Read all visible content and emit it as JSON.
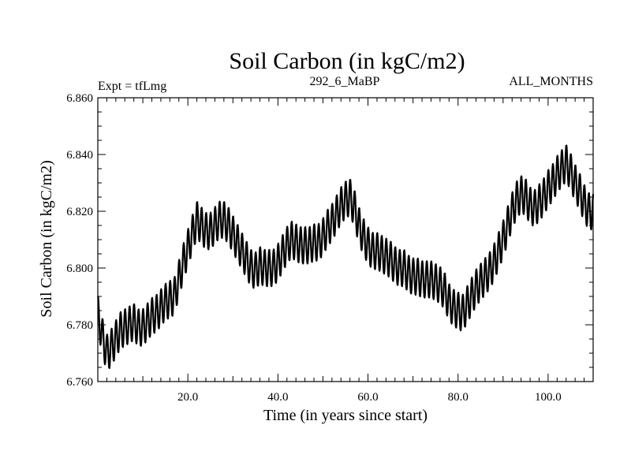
{
  "chart_data": {
    "type": "line",
    "title": "Soil Carbon (in kgC/m2)",
    "subtitle_left": "Expt = tfLmg",
    "subtitle_center": "292_6_MaBP",
    "subtitle_right": "ALL_MONTHS",
    "xlabel": "Time (in years since start)",
    "ylabel": "Soil Carbon (in kgC/m2)",
    "xlim": [
      0,
      110
    ],
    "ylim": [
      6.76,
      6.86
    ],
    "xticks": [
      20,
      40,
      60,
      80,
      100
    ],
    "xtick_labels": [
      "20.0",
      "40.0",
      "60.0",
      "80.0",
      "100.0"
    ],
    "yticks": [
      6.76,
      6.78,
      6.8,
      6.82,
      6.84,
      6.86
    ],
    "ytick_labels": [
      "6.760",
      "6.780",
      "6.800",
      "6.820",
      "6.840",
      "6.860"
    ],
    "series": [
      {
        "name": "Soil Carbon",
        "color": "#000000",
        "description": "monthly values with strong annual cycle",
        "x": [
          0,
          1,
          2,
          3,
          4,
          5,
          6,
          7,
          8,
          9,
          10,
          11,
          12,
          13,
          14,
          15,
          16,
          17,
          18,
          19,
          20,
          21,
          22,
          23,
          24,
          25,
          26,
          27,
          28,
          29,
          30,
          31,
          32,
          33,
          34,
          35,
          36,
          37,
          38,
          39,
          40,
          41,
          42,
          43,
          44,
          45,
          46,
          47,
          48,
          49,
          50,
          51,
          52,
          53,
          54,
          55,
          56,
          57,
          58,
          59,
          60,
          61,
          62,
          63,
          64,
          65,
          66,
          67,
          68,
          69,
          70,
          71,
          72,
          73,
          74,
          75,
          76,
          77,
          78,
          79,
          80,
          81,
          82,
          83,
          84,
          85,
          86,
          87,
          88,
          89,
          90,
          91,
          92,
          93,
          94,
          95,
          96,
          97,
          98,
          99,
          100,
          101,
          102,
          103,
          104,
          105,
          106,
          107,
          108,
          109,
          110
        ],
        "y": [
          6.784,
          6.776,
          6.77,
          6.772,
          6.775,
          6.778,
          6.779,
          6.78,
          6.781,
          6.779,
          6.779,
          6.781,
          6.783,
          6.784,
          6.786,
          6.788,
          6.789,
          6.79,
          6.796,
          6.802,
          6.807,
          6.812,
          6.817,
          6.815,
          6.813,
          6.813,
          6.815,
          6.817,
          6.817,
          6.815,
          6.812,
          6.809,
          6.806,
          6.803,
          6.8,
          6.799,
          6.801,
          6.8,
          6.8,
          6.8,
          6.802,
          6.805,
          6.808,
          6.81,
          6.809,
          6.808,
          6.808,
          6.808,
          6.809,
          6.809,
          6.811,
          6.814,
          6.816,
          6.819,
          6.822,
          6.824,
          6.825,
          6.821,
          6.815,
          6.811,
          6.808,
          6.806,
          6.806,
          6.805,
          6.804,
          6.803,
          6.801,
          6.8,
          6.8,
          6.798,
          6.797,
          6.797,
          6.796,
          6.796,
          6.796,
          6.795,
          6.794,
          6.792,
          6.788,
          6.786,
          6.785,
          6.784,
          6.787,
          6.79,
          6.793,
          6.795,
          6.797,
          6.799,
          6.802,
          6.806,
          6.81,
          6.815,
          6.82,
          6.824,
          6.826,
          6.825,
          6.822,
          6.821,
          6.823,
          6.825,
          6.828,
          6.83,
          6.833,
          6.835,
          6.837,
          6.834,
          6.83,
          6.827,
          6.823,
          6.82,
          6.82
        ],
        "annual_cycle_amplitude": 0.0065
      }
    ]
  }
}
